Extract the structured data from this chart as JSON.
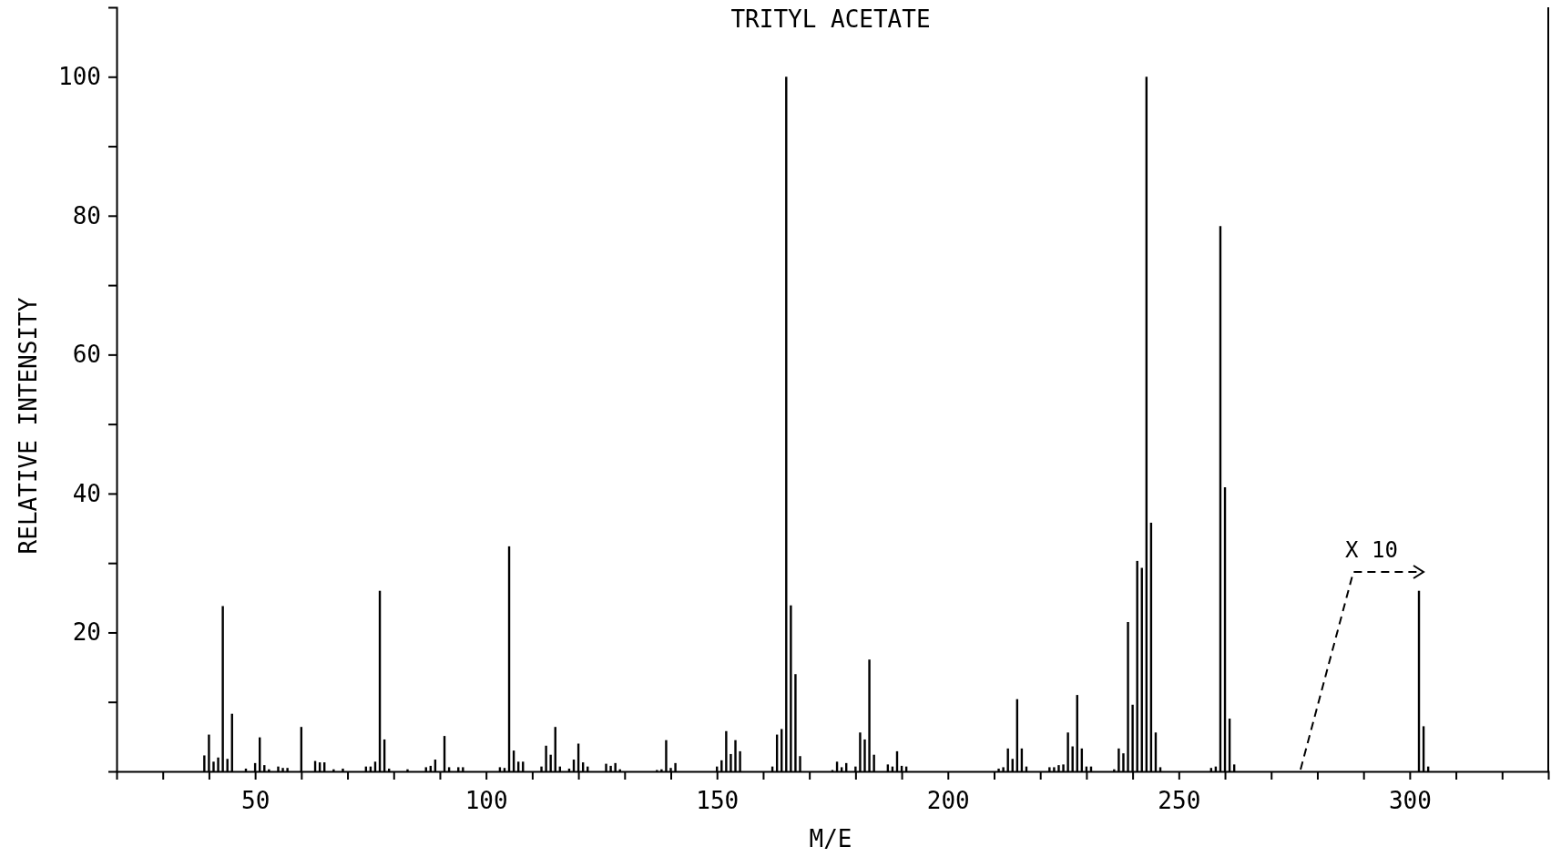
{
  "chart_data": {
    "type": "bar",
    "title": "TRITYL ACETATE",
    "xlabel": "M/E",
    "ylabel": "RELATIVE INTENSITY",
    "x": [
      39,
      40,
      41,
      42,
      43,
      44,
      45,
      48,
      50,
      51,
      52,
      53,
      55,
      56,
      57,
      60,
      63,
      64,
      65,
      67,
      69,
      74,
      75,
      76,
      77,
      78,
      79,
      83,
      87,
      88,
      89,
      91,
      92,
      94,
      95,
      103,
      104,
      105,
      106,
      107,
      108,
      112,
      113,
      114,
      115,
      116,
      118,
      119,
      120,
      121,
      122,
      126,
      127,
      128,
      129,
      137,
      138,
      139,
      140,
      141,
      150,
      151,
      152,
      153,
      154,
      155,
      162,
      163,
      164,
      165,
      166,
      167,
      168,
      175,
      176,
      177,
      178,
      180,
      181,
      182,
      183,
      184,
      187,
      188,
      189,
      190,
      191,
      211,
      212,
      213,
      214,
      215,
      216,
      217,
      222,
      223,
      224,
      225,
      226,
      227,
      228,
      229,
      230,
      231,
      236,
      237,
      238,
      239,
      240,
      241,
      242,
      243,
      244,
      245,
      246,
      257,
      258,
      259,
      260,
      261,
      262,
      302,
      303,
      304
    ],
    "values": [
      2.3,
      5.3,
      1.4,
      2.0,
      23.8,
      1.8,
      8.3,
      0.4,
      1.2,
      4.9,
      0.9,
      0.3,
      0.7,
      0.5,
      0.5,
      6.4,
      1.5,
      1.3,
      1.3,
      0.3,
      0.4,
      0.7,
      0.7,
      1.4,
      26.0,
      4.6,
      0.4,
      0.3,
      0.6,
      0.8,
      1.7,
      5.1,
      0.6,
      0.6,
      0.6,
      0.6,
      0.5,
      32.4,
      3.0,
      1.4,
      1.4,
      0.7,
      3.7,
      2.4,
      6.4,
      0.7,
      0.4,
      1.7,
      4.0,
      1.3,
      0.7,
      1.1,
      0.8,
      1.2,
      0.3,
      0.2,
      0.3,
      4.5,
      0.5,
      1.2,
      0.7,
      1.6,
      5.8,
      2.5,
      4.5,
      2.9,
      0.7,
      5.3,
      6.1,
      100,
      23.9,
      14.0,
      2.2,
      0.2,
      1.4,
      0.6,
      1.2,
      0.7,
      5.6,
      4.6,
      16.1,
      2.4,
      1.0,
      0.7,
      2.9,
      0.8,
      0.7,
      0.4,
      0.6,
      3.3,
      1.8,
      10.4,
      3.3,
      0.7,
      0.6,
      0.6,
      0.9,
      1.0,
      5.6,
      3.6,
      11.0,
      3.3,
      0.7,
      0.7,
      0.3,
      3.3,
      2.6,
      21.5,
      9.6,
      30.3,
      29.3,
      100,
      35.8,
      5.6,
      0.6,
      0.5,
      0.7,
      78.5,
      40.9,
      7.6,
      1.0,
      26,
      6.5,
      0.7
    ],
    "color": "#000000",
    "xlim": [
      20,
      330
    ],
    "xticks": [
      {
        "value": 30,
        "label": null
      },
      {
        "value": 40,
        "label": null
      },
      50,
      {
        "value": 60,
        "label": null
      },
      {
        "value": 70,
        "label": null
      },
      {
        "value": 80,
        "label": null
      },
      {
        "value": 90,
        "label": null
      },
      100,
      {
        "value": 110,
        "label": null
      },
      {
        "value": 120,
        "label": null
      },
      {
        "value": 130,
        "label": null
      },
      {
        "value": 140,
        "label": null
      },
      150,
      {
        "value": 160,
        "label": null
      },
      {
        "value": 170,
        "label": null
      },
      {
        "value": 180,
        "label": null
      },
      {
        "value": 190,
        "label": null
      },
      200,
      {
        "value": 210,
        "label": null
      },
      {
        "value": 220,
        "label": null
      },
      {
        "value": 230,
        "label": null
      },
      {
        "value": 240,
        "label": null
      },
      250,
      {
        "value": 260,
        "label": null
      },
      {
        "value": 270,
        "label": null
      },
      {
        "value": 280,
        "label": null
      },
      {
        "value": 290,
        "label": null
      },
      300,
      {
        "value": 310,
        "label": null
      },
      {
        "value": 320,
        "label": null
      }
    ],
    "ylim": [
      0,
      110
    ],
    "yticks": [
      {
        "value": 10,
        "label": null
      },
      20,
      {
        "value": 30,
        "label": null
      },
      40,
      {
        "value": 50,
        "label": null
      },
      60,
      {
        "value": 70,
        "label": null
      },
      80,
      {
        "value": 90,
        "label": null
      },
      100
    ],
    "annotations": [
      "X 10"
    ]
  }
}
